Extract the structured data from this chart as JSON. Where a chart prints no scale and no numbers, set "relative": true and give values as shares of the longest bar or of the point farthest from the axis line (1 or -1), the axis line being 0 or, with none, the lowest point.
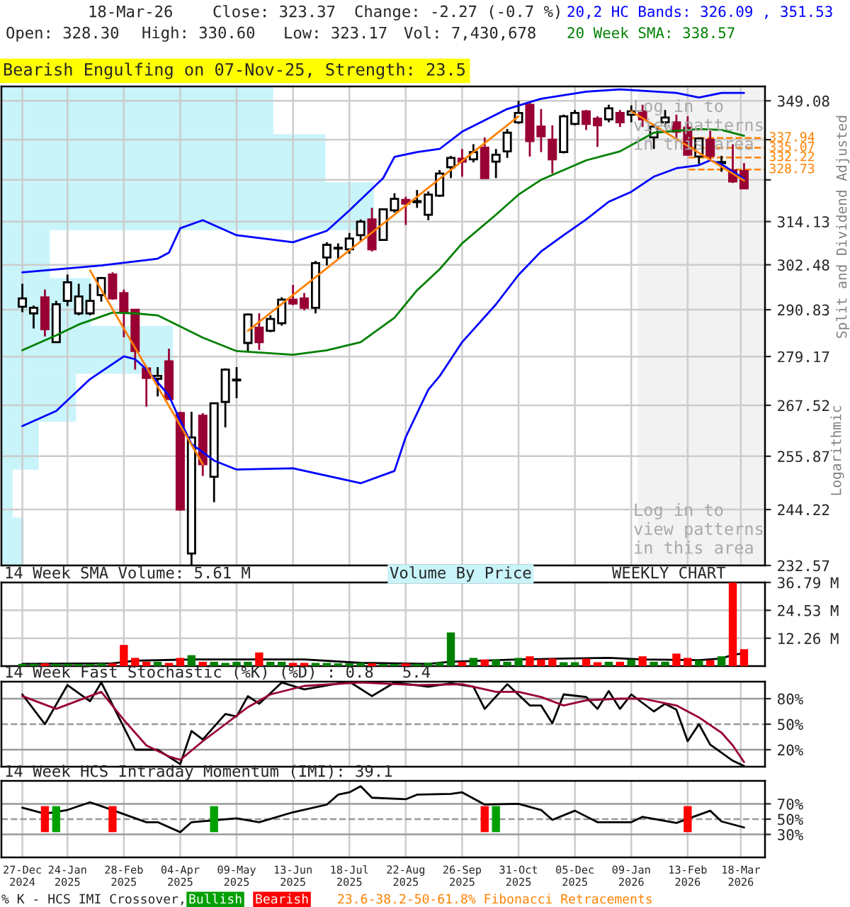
{
  "chart_data": [
    {
      "type": "candlestick",
      "x": [
        "2024-12-27",
        "2025-01-03",
        "2025-01-10",
        "2025-01-17",
        "2025-01-24",
        "2025-01-31",
        "2025-02-07",
        "2025-02-14",
        "2025-02-21",
        "2025-02-28",
        "2025-03-07",
        "2025-03-14",
        "2025-03-21",
        "2025-03-28",
        "2025-04-04",
        "2025-04-11",
        "2025-04-18",
        "2025-04-25",
        "2025-05-02",
        "2025-05-09",
        "2025-05-16",
        "2025-05-23",
        "2025-05-30",
        "2025-06-06",
        "2025-06-13",
        "2025-06-20",
        "2025-06-27",
        "2025-07-04",
        "2025-07-11",
        "2025-07-18",
        "2025-07-25",
        "2025-08-01",
        "2025-08-08",
        "2025-08-15",
        "2025-08-22",
        "2025-08-29",
        "2025-09-05",
        "2025-09-12",
        "2025-09-19",
        "2025-09-26",
        "2025-10-03",
        "2025-10-10",
        "2025-10-17",
        "2025-10-24",
        "2025-10-31",
        "2025-11-07",
        "2025-11-14",
        "2025-11-21",
        "2025-11-28",
        "2025-12-05",
        "2025-12-12",
        "2025-12-19",
        "2025-12-26",
        "2026-01-02",
        "2026-01-09",
        "2026-01-16",
        "2026-01-23",
        "2026-01-30",
        "2026-02-06",
        "2026-02-13",
        "2026-02-20",
        "2026-02-27",
        "2026-03-06",
        "2026-03-13",
        "2026-03-20"
      ],
      "ohlc": [
        [
          291.6,
          297.5,
          290.2,
          293.7
        ],
        [
          289.9,
          291.9,
          286.1,
          291.3
        ],
        [
          294.0,
          296.0,
          284.1,
          285.9
        ],
        [
          282.7,
          293.1,
          282.5,
          292.2
        ],
        [
          293.1,
          299.9,
          291.8,
          297.9
        ],
        [
          289.9,
          297.5,
          289.4,
          294.2
        ],
        [
          289.9,
          297.5,
          289.4,
          293.1
        ],
        [
          294.6,
          299.3,
          292.9,
          299.0
        ],
        [
          299.9,
          300.5,
          293.4,
          293.7
        ],
        [
          295.1,
          296.0,
          283.9,
          290.2
        ],
        [
          290.8,
          291.0,
          276.0,
          280.5
        ],
        [
          276.3,
          276.6,
          267.2,
          274.0
        ],
        [
          273.8,
          276.6,
          269.6,
          274.5
        ],
        [
          278.0,
          281.1,
          268.8,
          269.0
        ],
        [
          265.7,
          266.0,
          244.0,
          244.2
        ],
        [
          235.0,
          266.0,
          232.6,
          260.1
        ],
        [
          265.1,
          265.7,
          251.5,
          254.1
        ],
        [
          251.3,
          268.0,
          245.8,
          268.0
        ],
        [
          268.3,
          276.3,
          262.4,
          276.0
        ],
        [
          273.4,
          276.6,
          269.2,
          273.6
        ],
        [
          282.5,
          289.9,
          280.3,
          289.6
        ],
        [
          286.3,
          289.9,
          280.8,
          282.7
        ],
        [
          285.5,
          289.4,
          285.2,
          288.5
        ],
        [
          287.4,
          294.0,
          286.8,
          293.4
        ],
        [
          293.4,
          297.2,
          292.0,
          292.4
        ],
        [
          293.7,
          295.1,
          290.7,
          291.3
        ],
        [
          291.3,
          303.5,
          289.9,
          302.9
        ],
        [
          304.4,
          308.5,
          302.3,
          307.8
        ],
        [
          306.8,
          308.2,
          304.1,
          307.0
        ],
        [
          306.6,
          311.0,
          305.4,
          309.5
        ],
        [
          310.4,
          314.7,
          308.7,
          314.1
        ],
        [
          314.7,
          317.9,
          306.0,
          306.6
        ],
        [
          309.1,
          317.6,
          309.1,
          317.5
        ],
        [
          317.2,
          322.0,
          316.6,
          320.4
        ],
        [
          320.1,
          321.0,
          313.2,
          319.1
        ],
        [
          319.5,
          322.9,
          317.9,
          319.8
        ],
        [
          316.0,
          322.5,
          314.5,
          321.6
        ],
        [
          321.3,
          328.6,
          321.0,
          327.6
        ],
        [
          329.4,
          332.7,
          326.3,
          332.1
        ],
        [
          331.9,
          334.7,
          326.7,
          331.0
        ],
        [
          331.7,
          336.1,
          330.8,
          333.8
        ],
        [
          335.1,
          338.1,
          326.3,
          326.3
        ],
        [
          331.0,
          334.7,
          326.3,
          333.0
        ],
        [
          334.0,
          340.6,
          332.1,
          339.5
        ],
        [
          342.6,
          349.1,
          342.1,
          345.4
        ],
        [
          347.9,
          348.7,
          332.5,
          337.0
        ],
        [
          341.3,
          346.6,
          333.8,
          338.4
        ],
        [
          337.4,
          341.7,
          327.6,
          331.7
        ],
        [
          333.8,
          344.9,
          333.4,
          344.4
        ],
        [
          342.1,
          346.3,
          341.7,
          345.4
        ],
        [
          345.9,
          346.3,
          340.3,
          342.1
        ],
        [
          343.7,
          344.4,
          335.3,
          341.7
        ],
        [
          343.5,
          347.9,
          342.6,
          346.8
        ],
        [
          345.4,
          346.3,
          341.2,
          342.6
        ],
        [
          344.9,
          347.7,
          342.6,
          345.9
        ],
        [
          345.9,
          347.9,
          341.2,
          343.5
        ],
        [
          338.1,
          342.1,
          334.7,
          341.3
        ],
        [
          342.6,
          346.3,
          341.2,
          344.0
        ],
        [
          342.6,
          344.9,
          337.4,
          339.8
        ],
        [
          341.0,
          344.4,
          332.7,
          333.0
        ],
        [
          332.5,
          338.1,
          330.3,
          337.8
        ],
        [
          337.4,
          340.3,
          331.4,
          332.7
        ],
        [
          330.6,
          332.7,
          328.1,
          330.9
        ],
        [
          328.5,
          336.1,
          324.9,
          325.3
        ],
        [
          328.3,
          330.6,
          323.17,
          323.37
        ]
      ],
      "series": [
        {
          "type": "line",
          "name": "20,2 HC Bands: 326.09 , 351.53",
          "color": "#0000ff",
          "x": [
            "2024-12-27",
            "2025-02-14",
            "2025-03-21",
            "2025-03-28",
            "2025-04-04",
            "2025-04-18",
            "2025-05-09",
            "2025-06-13",
            "2025-07-04",
            "2025-07-18",
            "2025-08-08",
            "2025-08-15",
            "2025-08-29",
            "2025-09-12",
            "2025-09-26",
            "2025-10-24",
            "2025-11-07",
            "2025-11-14",
            "2025-12-12",
            "2026-01-02",
            "2026-02-06",
            "2026-02-20",
            "2026-03-06",
            "2026-03-20"
          ],
          "values": [
            300.5,
            302.3,
            304.1,
            305.7,
            312.3,
            314.5,
            310.4,
            308.5,
            311.6,
            317.2,
            326.3,
            332.4,
            333.8,
            334.7,
            339.8,
            346.6,
            348.7,
            349.7,
            351.9,
            352.6,
            351.5,
            350.1,
            351.5,
            351.53
          ]
        },
        {
          "type": "line",
          "color": "#0000ff",
          "x": [
            "2024-12-27",
            "2025-01-17",
            "2025-02-07",
            "2025-02-28",
            "2025-03-07",
            "2025-03-14",
            "2025-03-28",
            "2025-04-04",
            "2025-04-11",
            "2025-04-25",
            "2025-05-09",
            "2025-06-13",
            "2025-07-25",
            "2025-08-15",
            "2025-08-22",
            "2025-09-05",
            "2025-09-12",
            "2025-09-26",
            "2025-10-17",
            "2025-10-31",
            "2025-11-14",
            "2025-11-28",
            "2025-12-12",
            "2025-12-26",
            "2026-01-09",
            "2026-01-23",
            "2026-02-06",
            "2026-02-20",
            "2026-02-27",
            "2026-03-06",
            "2026-03-20"
          ],
          "values": [
            262.7,
            266.2,
            273.7,
            279.2,
            278.5,
            276.1,
            269.8,
            263.9,
            258.6,
            254.9,
            252.9,
            253.2,
            249.9,
            252.6,
            260.2,
            271.2,
            274.4,
            282.7,
            292.2,
            299.8,
            306.0,
            310.4,
            314.7,
            319.6,
            322.4,
            326.7,
            329.1,
            330.0,
            331.4,
            330.3,
            326.09
          ]
        },
        {
          "type": "line",
          "name": "20 Week SMA: 338.57",
          "color": "#008000",
          "x": [
            "2024-12-27",
            "2025-01-17",
            "2025-01-31",
            "2025-02-21",
            "2025-03-07",
            "2025-03-21",
            "2025-04-04",
            "2025-04-18",
            "2025-05-09",
            "2025-06-13",
            "2025-07-04",
            "2025-07-25",
            "2025-08-15",
            "2025-08-29",
            "2025-09-12",
            "2025-09-26",
            "2025-10-17",
            "2025-10-31",
            "2025-11-14",
            "2025-11-28",
            "2025-12-12",
            "2026-01-02",
            "2026-01-23",
            "2026-02-20",
            "2026-03-06",
            "2026-03-20"
          ],
          "values": [
            280.7,
            284.4,
            287.1,
            290.1,
            289.9,
            289.4,
            286.6,
            283.8,
            280.5,
            279.6,
            280.7,
            282.7,
            288.8,
            295.8,
            301.3,
            308.2,
            316.0,
            321.6,
            325.8,
            328.6,
            331.4,
            334.0,
            339.5,
            340.6,
            340.3,
            338.57
          ]
        },
        {
          "type": "line",
          "color": "#ff8000",
          "x": [
            "2025-02-07",
            "2025-04-18"
          ],
          "values": [
            301.0,
            254.1
          ]
        },
        {
          "type": "line",
          "color": "#ff8000",
          "x": [
            "2025-05-16",
            "2025-10-31"
          ],
          "values": [
            285.5,
            344.4
          ]
        },
        {
          "type": "line",
          "color": "#ff8000",
          "x": [
            "2026-01-09",
            "2026-03-20"
          ],
          "values": [
            345.9,
            325.6
          ]
        }
      ],
      "log": true,
      "xlim": [
        "2024-12-14",
        "2026-04-02"
      ],
      "xticks": [
        {
          "value": "2024-12-27",
          "label": null
        },
        {
          "value": "2025-01-24",
          "label": null
        },
        {
          "value": "2025-02-28",
          "label": null
        },
        {
          "value": "2025-04-04",
          "label": null
        },
        {
          "value": "2025-05-09",
          "label": null
        },
        {
          "value": "2025-06-13",
          "label": null
        },
        {
          "value": "2025-07-18",
          "label": null
        },
        {
          "value": "2025-08-22",
          "label": null
        },
        {
          "value": "2025-09-26",
          "label": null
        },
        {
          "value": "2025-10-31",
          "label": null
        },
        {
          "value": "2025-12-05",
          "label": null
        },
        {
          "value": "2026-01-09",
          "label": null
        },
        {
          "value": "2026-02-13",
          "label": null
        },
        {
          "value": "2026-03-18",
          "label": null
        }
      ],
      "ylim": [
        232.57,
        353.5
      ],
      "yticks": [
        349.08,
        {
          "value": 337.43,
          "label": null
        },
        {
          "value": 325.78,
          "label": null
        },
        314.13,
        302.48,
        290.83,
        279.17,
        267.52,
        255.87,
        244.22,
        232.57
      ],
      "ylabel": "Split and Dividend Adjusted",
      "tick_labels": "y",
      "grid": true,
      "bands": [
        {
          "axis": "x",
          "from": "2026-01-13",
          "to": "2026-04-02",
          "color": "#f2f2f2"
        }
      ],
      "ref_lines": [
        {
          "axis": "y",
          "value": 337.94,
          "label": "337.94",
          "color": "#ff8000",
          "line_style": "dashed"
        },
        {
          "axis": "y",
          "value": 335.07,
          "label": "335.07",
          "color": "#ff8000",
          "line_style": "dashed"
        },
        {
          "axis": "y",
          "value": 332.22,
          "label": "332.22",
          "color": "#ff8000",
          "line_style": "dashed"
        },
        {
          "axis": "y",
          "value": 328.73,
          "label": "328.73",
          "color": "#ff8000",
          "line_style": "dashed"
        }
      ],
      "annotations": [
        "18-Mar-26",
        "Close: 323.37",
        "Change: -2.27 (-0.7 %)",
        "Open: 328.30",
        "High: 330.60",
        "Low: 323.17",
        "Vol: 7,430,678",
        "Bearish Engulfing on 07-Nov-25, Strength: 23.5",
        "Log in to\nview patterns\nin this area",
        "Log in to\nview patterns\nin this area",
        "Logarithmic"
      ]
    },
    {
      "type": "bar",
      "orientation": "horizontal",
      "relative": true,
      "tick_labels": false,
      "categories": [
        null,
        null,
        null,
        null,
        null,
        null,
        null,
        null,
        null,
        null
      ],
      "values": [
        0.73,
        0.87,
        1,
        0.13,
        0.24,
        0.46,
        0.2,
        0.1,
        0.03,
        0.06
      ],
      "color": "#c8f4fa"
    },
    {
      "type": "bar",
      "title": "14 Week SMA Volume: 5.61 M",
      "x": [
        "2024-12-27",
        "2025-01-03",
        "2025-01-10",
        "2025-01-17",
        "2025-01-24",
        "2025-01-31",
        "2025-02-07",
        "2025-02-14",
        "2025-02-21",
        "2025-02-28",
        "2025-03-07",
        "2025-03-14",
        "2025-03-21",
        "2025-03-28",
        "2025-04-04",
        "2025-04-11",
        "2025-04-18",
        "2025-04-25",
        "2025-05-02",
        "2025-05-09",
        "2025-05-16",
        "2025-05-23",
        "2025-05-30",
        "2025-06-06",
        "2025-06-13",
        "2025-06-20",
        "2025-06-27",
        "2025-07-04",
        "2025-07-11",
        "2025-07-18",
        "2025-07-25",
        "2025-08-01",
        "2025-08-08",
        "2025-08-15",
        "2025-08-22",
        "2025-08-29",
        "2025-09-05",
        "2025-09-12",
        "2025-09-19",
        "2025-09-26",
        "2025-10-03",
        "2025-10-10",
        "2025-10-17",
        "2025-10-24",
        "2025-10-31",
        "2025-11-07",
        "2025-11-14",
        "2025-11-21",
        "2025-11-28",
        "2025-12-05",
        "2025-12-12",
        "2025-12-19",
        "2025-12-26",
        "2026-01-02",
        "2026-01-09",
        "2026-01-16",
        "2026-01-23",
        "2026-01-30",
        "2026-02-06",
        "2026-02-13",
        "2026-02-20",
        "2026-02-27",
        "2026-03-06",
        "2026-03-13",
        "2026-03-20"
      ],
      "series": [
        {
          "type": "bar",
          "values": [
            1.0,
            1.0,
            1.2,
            1.0,
            1.0,
            1.0,
            1.0,
            1.2,
            1.2,
            9.3,
            3.6,
            1.9,
            1.9,
            1.4,
            3.6,
            4.8,
            1.9,
            1.9,
            1.4,
            1.9,
            1.9,
            6.0,
            1.9,
            1.9,
            1.4,
            1.4,
            1.4,
            1.4,
            1.2,
            1.2,
            1.4,
            1.2,
            1.0,
            1.0,
            1.2,
            1.0,
            1.4,
            1.6,
            14.8,
            1.9,
            3.6,
            2.9,
            2.9,
            1.9,
            3.6,
            4.3,
            2.9,
            3.3,
            1.7,
            1.7,
            3.3,
            1.7,
            1.9,
            1.9,
            2.9,
            4.3,
            1.9,
            1.9,
            5.5,
            3.6,
            2.6,
            2.6,
            4.3,
            36.79,
            7.43
          ],
          "colors": [
            "#008000",
            "#008000",
            "#ff0000",
            "#008000",
            "#008000",
            "#008000",
            "#008000",
            "#008000",
            "#ff0000",
            "#ff0000",
            "#ff0000",
            "#ff0000",
            "#008000",
            "#ff0000",
            "#ff0000",
            "#008000",
            "#ff0000",
            "#008000",
            "#008000",
            "#008000",
            "#008000",
            "#ff0000",
            "#008000",
            "#008000",
            "#ff0000",
            "#ff0000",
            "#008000",
            "#008000",
            "#008000",
            "#008000",
            "#008000",
            "#ff0000",
            "#008000",
            "#008000",
            "#ff0000",
            "#008000",
            "#008000",
            "#008000",
            "#008000",
            "#ff0000",
            "#008000",
            "#ff0000",
            "#008000",
            "#008000",
            "#008000",
            "#ff0000",
            "#ff0000",
            "#ff0000",
            "#008000",
            "#008000",
            "#ff0000",
            "#ff0000",
            "#008000",
            "#ff0000",
            "#008000",
            "#ff0000",
            "#008000",
            "#008000",
            "#ff0000",
            "#ff0000",
            "#008000",
            "#ff0000",
            "#008000",
            "#ff0000",
            "#ff0000"
          ]
        },
        {
          "type": "line",
          "color": "#000000",
          "x": [
            "2024-12-27",
            "2025-02-21",
            "2025-03-07",
            "2025-04-11",
            "2025-06-20",
            "2025-07-25",
            "2025-09-05",
            "2025-09-19",
            "2025-10-31",
            "2025-11-28",
            "2025-12-26",
            "2026-01-16",
            "2026-02-20",
            "2026-03-06",
            "2026-03-13",
            "2026-03-20"
          ],
          "values": [
            1.0,
            1.2,
            2.4,
            2.9,
            2.9,
            1.4,
            1.0,
            1.9,
            2.9,
            3.3,
            3.6,
            2.9,
            2.6,
            3.3,
            5.0,
            5.61
          ]
        }
      ],
      "xlim": [
        "2024-12-14",
        "2026-04-02"
      ],
      "xticks": [
        {
          "value": "2024-12-27",
          "label": null
        },
        {
          "value": "2025-01-24",
          "label": null
        },
        {
          "value": "2025-02-28",
          "label": null
        },
        {
          "value": "2025-04-04",
          "label": null
        },
        {
          "value": "2025-05-09",
          "label": null
        },
        {
          "value": "2025-06-13",
          "label": null
        },
        {
          "value": "2025-07-18",
          "label": null
        },
        {
          "value": "2025-08-22",
          "label": null
        },
        {
          "value": "2025-09-26",
          "label": null
        },
        {
          "value": "2025-10-31",
          "label": null
        },
        {
          "value": "2025-12-05",
          "label": null
        },
        {
          "value": "2026-01-09",
          "label": null
        },
        {
          "value": "2026-02-13",
          "label": null
        },
        {
          "value": "2026-03-18",
          "label": null
        }
      ],
      "ylim": [
        0,
        36.79
      ],
      "yticks": [
        {
          "value": 12.26,
          "label": "12.26 M"
        },
        {
          "value": 24.53,
          "label": "24.53 M"
        },
        {
          "value": 36.79,
          "label": "36.79 M"
        }
      ],
      "tick_labels": "y",
      "grid": true,
      "annotations": [
        "Volume By Price",
        "WEEKLY CHART"
      ]
    },
    {
      "type": "line",
      "title": "14 Week Fast Stochastic (%K) (%D) : 0.8   5.4",
      "series": [
        {
          "color": "#000000",
          "x": [
            "2024-12-27",
            "2025-01-10",
            "2025-01-24",
            "2025-02-07",
            "2025-02-14",
            "2025-03-07",
            "2025-03-21",
            "2025-04-04",
            "2025-04-11",
            "2025-04-18",
            "2025-05-02",
            "2025-05-09",
            "2025-05-16",
            "2025-05-23",
            "2025-06-06",
            "2025-06-20",
            "2025-07-18",
            "2025-08-01",
            "2025-08-15",
            "2025-09-05",
            "2025-09-19",
            "2025-10-03",
            "2025-10-10",
            "2025-10-24",
            "2025-11-07",
            "2025-11-14",
            "2025-11-21",
            "2025-11-28",
            "2025-12-12",
            "2025-12-19",
            "2025-12-26",
            "2026-01-02",
            "2026-01-09",
            "2026-01-23",
            "2026-01-30",
            "2026-02-06",
            "2026-02-13",
            "2026-02-20",
            "2026-02-27",
            "2026-03-13",
            "2026-03-20"
          ],
          "values": [
            85,
            50,
            96,
            77,
            99,
            20,
            20,
            3,
            42,
            32,
            62,
            59,
            83,
            74,
            99,
            91,
            100,
            83,
            99,
            94,
            98,
            94,
            68,
            97,
            72,
            72,
            51,
            85,
            82,
            68,
            89,
            68,
            85,
            65,
            74,
            67,
            30,
            50,
            26,
            7,
            0.8
          ]
        },
        {
          "color": "#990033",
          "x": [
            "2024-12-27",
            "2025-01-17",
            "2025-01-31",
            "2025-02-14",
            "2025-02-28",
            "2025-03-14",
            "2025-03-28",
            "2025-04-04",
            "2025-04-18",
            "2025-05-02",
            "2025-05-16",
            "2025-05-30",
            "2025-06-20",
            "2025-07-25",
            "2025-08-29",
            "2025-09-26",
            "2025-10-17",
            "2025-10-31",
            "2025-11-14",
            "2025-11-28",
            "2025-12-12",
            "2026-01-02",
            "2026-01-16",
            "2026-02-06",
            "2026-02-20",
            "2026-03-06",
            "2026-03-13",
            "2026-03-20"
          ],
          "values": [
            83,
            68,
            78,
            88,
            55,
            25,
            12,
            8,
            30,
            50,
            70,
            85,
            95,
            99,
            96,
            97,
            88,
            88,
            82,
            72,
            78,
            80,
            80,
            72,
            58,
            40,
            25,
            5.4
          ]
        }
      ],
      "xlim": [
        "2024-12-14",
        "2026-04-02"
      ],
      "xticks": [
        {
          "value": "2024-12-27",
          "label": null
        },
        {
          "value": "2025-01-24",
          "label": null
        },
        {
          "value": "2025-02-28",
          "label": null
        },
        {
          "value": "2025-04-04",
          "label": null
        },
        {
          "value": "2025-05-09",
          "label": null
        },
        {
          "value": "2025-06-13",
          "label": null
        },
        {
          "value": "2025-07-18",
          "label": null
        },
        {
          "value": "2025-08-22",
          "label": null
        },
        {
          "value": "2025-09-26",
          "label": null
        },
        {
          "value": "2025-10-31",
          "label": null
        },
        {
          "value": "2025-12-05",
          "label": null
        },
        {
          "value": "2026-01-09",
          "label": null
        },
        {
          "value": "2026-02-13",
          "label": null
        },
        {
          "value": "2026-03-18",
          "label": null
        }
      ],
      "ylim": [
        0,
        100
      ],
      "yticks": [
        {
          "value": 20,
          "label": "20%"
        },
        {
          "value": 50,
          "label": "50%"
        },
        {
          "value": 80,
          "label": "80%"
        }
      ],
      "tick_labels": "y",
      "grid": "x",
      "ref_lines": [
        {
          "axis": "y",
          "value": 20,
          "color": "#999999",
          "line_style": "solid"
        },
        {
          "axis": "y",
          "value": 50,
          "color": "#999999",
          "line_style": "dashed"
        },
        {
          "axis": "y",
          "value": 80,
          "color": "#999999",
          "line_style": "solid"
        }
      ]
    },
    {
      "type": "line",
      "title": "14 Week HCS Intraday Momentum (IMI): 39.1",
      "series": [
        {
          "color": "#000000",
          "x": [
            "2024-12-27",
            "2025-01-10",
            "2025-01-24",
            "2025-02-07",
            "2025-02-14",
            "2025-03-14",
            "2025-03-21",
            "2025-04-04",
            "2025-04-11",
            "2025-05-09",
            "2025-05-23",
            "2025-06-13",
            "2025-07-04",
            "2025-07-11",
            "2025-07-18",
            "2025-07-25",
            "2025-08-01",
            "2025-08-22",
            "2025-08-29",
            "2025-09-19",
            "2025-09-26",
            "2025-10-10",
            "2025-10-31",
            "2025-11-14",
            "2025-11-21",
            "2025-12-05",
            "2025-12-19",
            "2026-01-09",
            "2026-01-16",
            "2026-02-06",
            "2026-02-27",
            "2026-03-06",
            "2026-03-20"
          ],
          "values": [
            65,
            57,
            62,
            72,
            67,
            46,
            46,
            33,
            46,
            51,
            46,
            59,
            69,
            82,
            85,
            93,
            78,
            76,
            82,
            83,
            85,
            69,
            70,
            62,
            49,
            61,
            46,
            46,
            53,
            45,
            61,
            47,
            39.1
          ]
        },
        {
          "type": "bar",
          "name": "Bullish",
          "color": "#00a000",
          "x": [
            "2025-01-17",
            "2025-04-25",
            "2025-10-17"
          ],
          "values": [
            34,
            34,
            34
          ],
          "base": [
            33,
            33,
            33
          ]
        },
        {
          "type": "bar",
          "name": "Bearish",
          "color": "#ff0000",
          "x": [
            "2025-01-10",
            "2025-02-21",
            "2025-10-10",
            "2026-02-13"
          ],
          "values": [
            34,
            34,
            34,
            34
          ],
          "base": [
            33,
            33,
            33,
            33
          ]
        }
      ],
      "legend": "bottom",
      "xlim": [
        "2024-12-14",
        "2026-04-02"
      ],
      "xticks": [
        {
          "value": "2024-12-27",
          "label": "27-Dec\n2024"
        },
        {
          "value": "2025-01-24",
          "label": "24-Jan\n2025"
        },
        {
          "value": "2025-02-28",
          "label": "28-Feb\n2025"
        },
        {
          "value": "2025-04-04",
          "label": "04-Apr\n2025"
        },
        {
          "value": "2025-05-09",
          "label": "09-May\n2025"
        },
        {
          "value": "2025-06-13",
          "label": "13-Jun\n2025"
        },
        {
          "value": "2025-07-18",
          "label": "18-Jul\n2025"
        },
        {
          "value": "2025-08-22",
          "label": "22-Aug\n2025"
        },
        {
          "value": "2025-09-26",
          "label": "26-Sep\n2025"
        },
        {
          "value": "2025-10-31",
          "label": "31-Oct\n2025"
        },
        {
          "value": "2025-12-05",
          "label": "05-Dec\n2025"
        },
        {
          "value": "2026-01-09",
          "label": "09-Jan\n2026"
        },
        {
          "value": "2026-02-13",
          "label": "13-Feb\n2026"
        },
        {
          "value": "2026-03-18",
          "label": "18-Mar\n2026"
        }
      ],
      "ylim": [
        0,
        100
      ],
      "yticks": [
        {
          "value": 30,
          "label": "30%"
        },
        {
          "value": 50,
          "label": "50%"
        },
        {
          "value": 70,
          "label": "70%"
        }
      ],
      "grid": "x",
      "ref_lines": [
        {
          "axis": "y",
          "value": 30,
          "color": "#999999",
          "line_style": "solid"
        },
        {
          "axis": "y",
          "value": 50,
          "color": "#999999",
          "line_style": "dashed"
        },
        {
          "axis": "y",
          "value": 70,
          "color": "#999999",
          "line_style": "solid"
        }
      ],
      "annotations": [
        "% K - HCS IMI Crossover,",
        "23.6-38.2-50-61.8% Fibonacci Retracements"
      ]
    }
  ]
}
